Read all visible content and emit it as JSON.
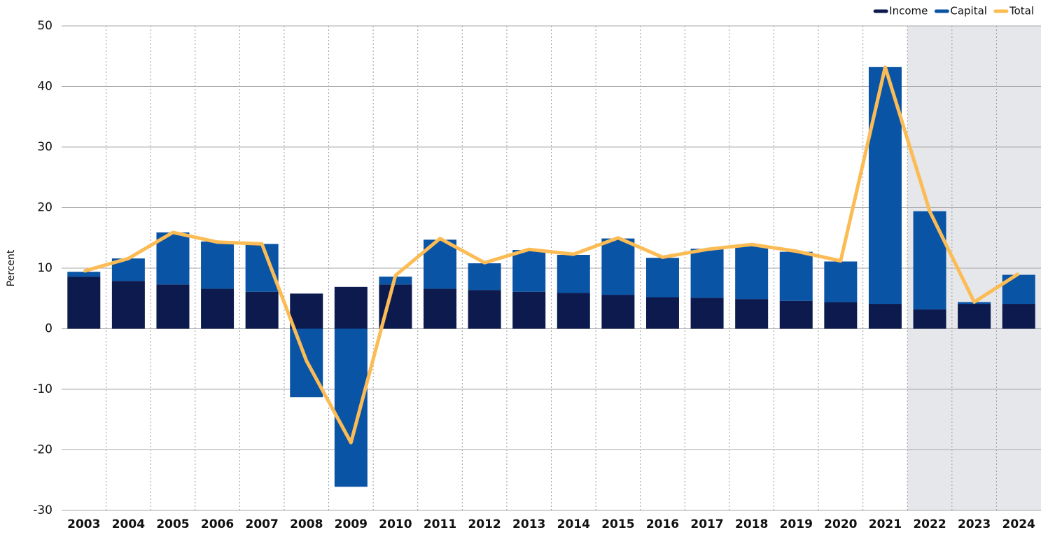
{
  "chart_data": {
    "type": "stacked_bar_line",
    "y_label": "Percent",
    "categories": [
      "2003",
      "2004",
      "2005",
      "2006",
      "2007",
      "2008",
      "2009",
      "2010",
      "2011",
      "2012",
      "2013",
      "2014",
      "2015",
      "2016",
      "2017",
      "2018",
      "2019",
      "2020",
      "2021",
      "2022",
      "2023",
      "2024"
    ],
    "series": [
      {
        "name": "Income",
        "type": "bar",
        "color": "#0c1a4e",
        "values": [
          8.6,
          7.9,
          7.3,
          6.6,
          6.1,
          5.8,
          6.9,
          7.3,
          6.6,
          6.4,
          6.1,
          5.9,
          5.6,
          5.2,
          5.1,
          4.9,
          4.6,
          4.4,
          4.1,
          3.2,
          4.1,
          4.1
        ]
      },
      {
        "name": "Capital",
        "type": "bar",
        "color": "#0a54a6",
        "values": [
          0.8,
          3.7,
          8.6,
          7.8,
          7.9,
          -11.3,
          -26.1,
          1.3,
          8.1,
          4.4,
          6.9,
          6.3,
          9.3,
          6.5,
          8.1,
          8.8,
          8.1,
          6.7,
          39.1,
          16.2,
          0.3,
          4.8
        ]
      },
      {
        "name": "Total",
        "type": "line",
        "color": "#fbbc55",
        "values": [
          9.5,
          11.6,
          15.9,
          14.3,
          14.0,
          -5.3,
          -18.8,
          8.8,
          14.9,
          10.9,
          13.1,
          12.3,
          15.0,
          11.8,
          13.1,
          13.9,
          12.8,
          11.2,
          43.2,
          19.4,
          4.4,
          9.1
        ]
      }
    ],
    "ylim": [
      -30,
      50
    ],
    "yticks": [
      -30,
      -20,
      -10,
      0,
      10,
      20,
      30,
      40,
      50
    ],
    "grid": true,
    "legend": "top-right",
    "highlight_start": "2022",
    "highlight_color": "#e6e7ea"
  }
}
